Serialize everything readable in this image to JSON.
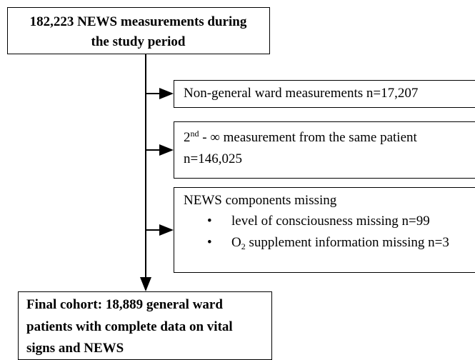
{
  "nodes": [
    {
      "lines": [
        "182,223 NEWS measurements during",
        "the study period"
      ]
    },
    {
      "text": "Non-general ward measurements n=17,207"
    },
    {
      "base": "2",
      "sup": "nd",
      "rest": " - ∞ measurement from the same patient",
      "line2": "n=146,025"
    },
    {
      "title": "NEWS components missing",
      "items": [
        {
          "text": "level of consciousness missing n=99"
        },
        {
          "base": "O",
          "sub": "2",
          "rest": " supplement information missing n=3"
        }
      ]
    },
    {
      "lines": [
        "Final cohort: 18,889 general ward",
        "patients with complete data on vital",
        "signs and NEWS"
      ]
    }
  ]
}
